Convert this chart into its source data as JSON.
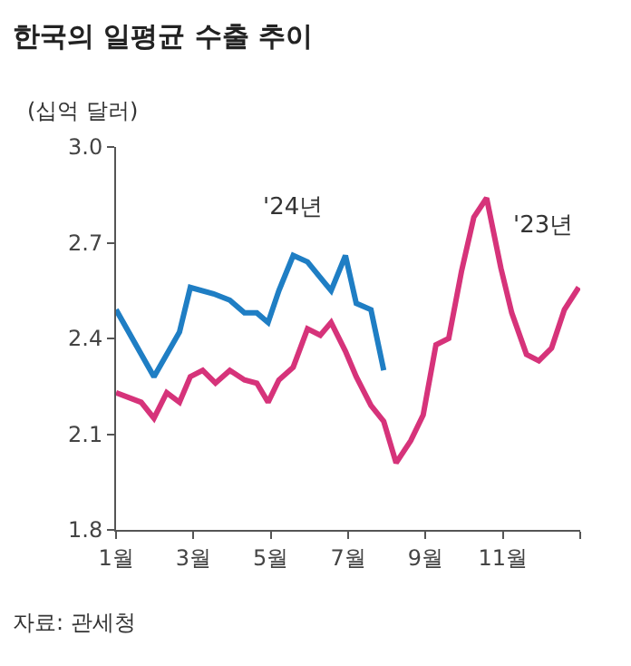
{
  "chart_data": {
    "type": "line",
    "title": "한국의 일평균 수출 추이",
    "ylabel": "(십억 달러)",
    "annotations": [
      "자료: 관세청"
    ],
    "xlim": [
      1,
      13
    ],
    "xticks": [
      {
        "value": 1,
        "label": "1월"
      },
      {
        "value": 3,
        "label": "3월"
      },
      {
        "value": 5,
        "label": "5월"
      },
      {
        "value": 7,
        "label": "7월"
      },
      {
        "value": 9,
        "label": "9월"
      },
      {
        "value": 11,
        "label": "11월"
      },
      {
        "value": 13,
        "label": null
      }
    ],
    "ylim": [
      1.8,
      3.0
    ],
    "yticks": [
      {
        "value": 1.8,
        "label": "1.8"
      },
      {
        "value": 2.1,
        "label": "2.1"
      },
      {
        "value": 2.4,
        "label": "2.4"
      },
      {
        "value": 2.7,
        "label": "2.7"
      },
      {
        "value": 3.0,
        "label": "3.0"
      }
    ],
    "series": [
      {
        "name": "'24년",
        "color": "#1f7ec4",
        "x": [
          1.0,
          1.98,
          2.64,
          2.92,
          3.52,
          3.94,
          4.32,
          4.64,
          4.93,
          5.21,
          5.58,
          5.95,
          6.42,
          6.56,
          6.93,
          7.21,
          7.59,
          7.92
        ],
        "values": [
          2.49,
          2.28,
          2.42,
          2.56,
          2.54,
          2.52,
          2.48,
          2.48,
          2.45,
          2.55,
          2.66,
          2.64,
          2.57,
          2.55,
          2.66,
          2.51,
          2.49,
          2.3
        ]
      },
      {
        "name": "'23년",
        "color": "#d6337a",
        "x": [
          1.0,
          1.65,
          1.98,
          2.31,
          2.64,
          2.92,
          3.24,
          3.57,
          3.94,
          4.32,
          4.64,
          4.93,
          5.21,
          5.58,
          5.95,
          6.28,
          6.56,
          6.93,
          7.21,
          7.59,
          7.92,
          8.24,
          8.62,
          8.94,
          9.27,
          9.6,
          9.93,
          10.25,
          10.58,
          10.95,
          11.23,
          11.61,
          11.93,
          12.26,
          12.59,
          12.96
        ],
        "values": [
          2.23,
          2.2,
          2.15,
          2.23,
          2.2,
          2.28,
          2.3,
          2.26,
          2.3,
          2.27,
          2.26,
          2.2,
          2.27,
          2.31,
          2.43,
          2.41,
          2.45,
          2.36,
          2.28,
          2.19,
          2.14,
          2.01,
          2.08,
          2.16,
          2.38,
          2.4,
          2.61,
          2.78,
          2.84,
          2.62,
          2.48,
          2.35,
          2.33,
          2.37,
          2.49,
          2.56
        ]
      }
    ]
  }
}
